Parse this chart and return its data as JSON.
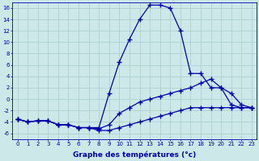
{
  "x": [
    0,
    1,
    2,
    3,
    4,
    5,
    6,
    7,
    8,
    9,
    10,
    11,
    12,
    13,
    14,
    15,
    16,
    17,
    18,
    19,
    20,
    21,
    22,
    23
  ],
  "line_top": [
    -3.5,
    -4.0,
    -3.8,
    -3.8,
    -4.5,
    -4.5,
    -5.0,
    -5.0,
    -5.0,
    1.0,
    6.5,
    10.5,
    14.0,
    16.5,
    16.5,
    16.0,
    12.0,
    4.5,
    4.5,
    2.0,
    2.0,
    -1.0,
    -1.5,
    -1.5
  ],
  "line_mid": [
    -3.5,
    -4.0,
    -3.8,
    -3.8,
    -4.5,
    -4.5,
    -5.0,
    -5.0,
    -5.2,
    -4.5,
    -2.5,
    -1.5,
    -0.5,
    0.0,
    0.5,
    1.0,
    1.5,
    2.0,
    2.8,
    3.5,
    2.0,
    1.0,
    -1.0,
    -1.5
  ],
  "line_bot": [
    -3.5,
    -4.0,
    -3.8,
    -3.8,
    -4.5,
    -4.5,
    -5.0,
    -5.0,
    -5.5,
    -5.5,
    -5.0,
    -4.5,
    -4.0,
    -3.5,
    -3.0,
    -2.5,
    -2.0,
    -1.5,
    -1.5,
    -1.5,
    -1.5,
    -1.5,
    -1.5,
    -1.5
  ],
  "line_color": "#0000aa",
  "bg_color": "#cce8e8",
  "grid_color": "#aacccc",
  "xlabel": "Graphe des températures (°c)",
  "ylim": [
    -7,
    17
  ],
  "yticks": [
    -6,
    -4,
    -2,
    0,
    2,
    4,
    6,
    8,
    10,
    12,
    14,
    16
  ],
  "xticks": [
    0,
    1,
    2,
    3,
    4,
    5,
    6,
    7,
    8,
    9,
    10,
    11,
    12,
    13,
    14,
    15,
    16,
    17,
    18,
    19,
    20,
    21,
    22,
    23
  ],
  "marker": "+",
  "markersize": 4,
  "linewidth": 0.9,
  "tick_fontsize": 5,
  "xlabel_fontsize": 6.5,
  "font_color": "#0000aa"
}
